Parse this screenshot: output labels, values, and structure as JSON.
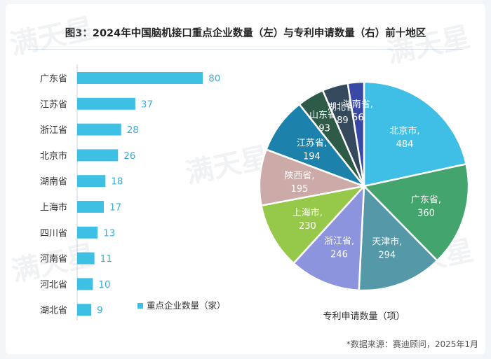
{
  "header": {
    "title": "图3：2024年中国脑机接口重点企业数量（左）与专利申请数量（右）前十地区"
  },
  "watermark": "满天星",
  "footer": {
    "source": "*数据来源：赛迪顾问，2025年1月"
  },
  "colors": {
    "bar": "#3ec0e4",
    "barLabel": "#3aaed6"
  },
  "chart_data": [
    {
      "type": "bar",
      "orientation": "horizontal",
      "categories": [
        "广东省",
        "江苏省",
        "浙江省",
        "北京市",
        "湖南省",
        "上海市",
        "四川省",
        "河南省",
        "河北省",
        "湖北省"
      ],
      "values": [
        80,
        37,
        28,
        26,
        18,
        17,
        13,
        11,
        10,
        9
      ],
      "legend": "重点企业数量（家）",
      "color": "#3ec0e4"
    },
    {
      "type": "pie",
      "labels": [
        "北京市",
        "广东省",
        "天津市",
        "浙江省",
        "上海市",
        "陕西省",
        "江苏省",
        "山东省",
        "湖北省",
        "湖南省"
      ],
      "values": [
        484,
        360,
        294,
        246,
        230,
        195,
        194,
        93,
        89,
        56
      ],
      "colors": [
        "#40bfe6",
        "#44a46e",
        "#5599a8",
        "#8c94dd",
        "#96c84a",
        "#ccaaa8",
        "#1c82ac",
        "#2e5a48",
        "#344a5c",
        "#3848a4"
      ],
      "caption": "专利申请数量（项）"
    }
  ]
}
